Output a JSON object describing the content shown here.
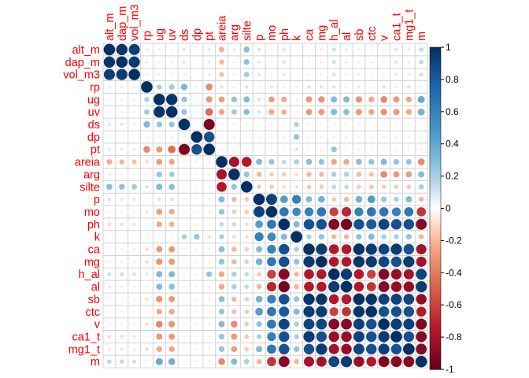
{
  "chart_data": {
    "type": "heatmap",
    "variables": [
      "alt_m",
      "dap_m",
      "vol_m3",
      "rp",
      "ug",
      "uv",
      "ds",
      "dp",
      "pt",
      "areia",
      "arg",
      "silte",
      "p",
      "mo",
      "ph",
      "k",
      "ca",
      "mg",
      "h_al",
      "al",
      "sb",
      "ctc",
      "v",
      "ca1_t",
      "mg1_t",
      "m"
    ],
    "matrix": [
      [
        1,
        0.97,
        0.93,
        0.06,
        0.05,
        0.04,
        0.08,
        -0.02,
        0.07,
        -0.23,
        0.06,
        0.28,
        0.1,
        -0.05,
        -0.1,
        0.02,
        -0.04,
        -0.06,
        0.12,
        0.06,
        -0.05,
        -0.05,
        -0.05,
        -0.1,
        -0.07,
        0.15
      ],
      [
        0.97,
        1,
        0.95,
        0.06,
        0.05,
        0.05,
        0.08,
        -0.02,
        0.07,
        -0.2,
        0.05,
        0.26,
        0.08,
        -0.05,
        -0.1,
        0.02,
        -0.05,
        -0.06,
        0.12,
        0.06,
        -0.05,
        -0.05,
        -0.05,
        -0.1,
        -0.07,
        0.15
      ],
      [
        0.93,
        0.95,
        1,
        0.05,
        0.05,
        0.05,
        0.06,
        -0.02,
        0.06,
        -0.18,
        0.05,
        0.22,
        0.08,
        -0.05,
        -0.08,
        0.02,
        -0.05,
        -0.05,
        0.1,
        0.05,
        -0.05,
        -0.05,
        -0.05,
        -0.08,
        -0.06,
        0.12
      ],
      [
        0.06,
        0.06,
        0.05,
        1,
        0.2,
        0.22,
        0.32,
        0.05,
        -0.35,
        -0.1,
        0.05,
        0.1,
        -0.05,
        -0.08,
        0.05,
        -0.05,
        -0.1,
        -0.1,
        0.08,
        0.05,
        -0.08,
        -0.05,
        -0.1,
        -0.05,
        -0.1,
        0.05
      ],
      [
        0.05,
        0.05,
        0.05,
        0.2,
        1,
        0.97,
        0.25,
        0.05,
        -0.3,
        -0.28,
        0.25,
        0.3,
        0.1,
        -0.28,
        -0.25,
        0.05,
        -0.3,
        -0.32,
        0.3,
        0.3,
        -0.32,
        -0.25,
        -0.35,
        -0.3,
        -0.25,
        0.38
      ],
      [
        0.04,
        0.05,
        0.05,
        0.22,
        0.97,
        1,
        0.25,
        0.05,
        -0.45,
        -0.25,
        0.22,
        0.28,
        0.1,
        -0.25,
        -0.22,
        0.05,
        -0.3,
        -0.3,
        0.3,
        0.28,
        -0.3,
        -0.25,
        -0.32,
        -0.3,
        -0.25,
        0.35
      ],
      [
        0.08,
        0.08,
        0.06,
        0.32,
        0.25,
        0.25,
        1,
        0.05,
        -0.93,
        -0.05,
        0.05,
        0.05,
        0.05,
        -0.05,
        -0.05,
        0.2,
        -0.05,
        -0.05,
        0.05,
        0.05,
        -0.05,
        -0.05,
        -0.05,
        -0.05,
        -0.05,
        0.05
      ],
      [
        -0.02,
        -0.02,
        -0.02,
        0.05,
        0.05,
        0.05,
        0.05,
        1,
        0.85,
        0.05,
        -0.05,
        -0.05,
        -0.05,
        -0.05,
        -0.05,
        0.25,
        -0.05,
        -0.05,
        0.05,
        0.05,
        -0.05,
        -0.05,
        -0.05,
        -0.05,
        0.05,
        0.05
      ],
      [
        0.07,
        0.07,
        0.06,
        -0.35,
        -0.3,
        -0.45,
        -0.93,
        0.85,
        1,
        0.05,
        -0.05,
        -0.05,
        -0.05,
        -0.05,
        -0.05,
        -0.1,
        -0.05,
        -0.05,
        0.25,
        0.05,
        -0.05,
        -0.05,
        -0.05,
        -0.05,
        -0.05,
        0.05
      ],
      [
        -0.23,
        -0.2,
        -0.18,
        -0.1,
        -0.28,
        -0.25,
        -0.05,
        0.05,
        0.05,
        1,
        -0.8,
        -0.75,
        0.3,
        0.25,
        0.15,
        0.2,
        0.28,
        0.25,
        -0.25,
        -0.25,
        0.28,
        0.25,
        0.3,
        0.25,
        0.25,
        -0.35
      ],
      [
        0.06,
        0.05,
        0.05,
        0.05,
        0.25,
        0.22,
        0.05,
        -0.05,
        -0.05,
        -0.8,
        1,
        0.25,
        -0.2,
        -0.15,
        -0.15,
        -0.1,
        -0.2,
        -0.2,
        0.2,
        0.2,
        -0.2,
        -0.18,
        -0.35,
        -0.3,
        -0.28,
        0.3
      ],
      [
        0.28,
        0.26,
        0.22,
        0.1,
        0.3,
        0.28,
        0.05,
        -0.05,
        -0.05,
        -0.75,
        0.25,
        1,
        -0.15,
        -0.15,
        -0.1,
        -0.1,
        -0.15,
        -0.15,
        0.15,
        0.15,
        -0.15,
        -0.15,
        -0.15,
        -0.15,
        -0.15,
        0.2
      ],
      [
        0.1,
        0.08,
        0.08,
        -0.05,
        0.1,
        0.1,
        0.05,
        -0.05,
        -0.05,
        0.3,
        -0.2,
        -0.15,
        1,
        0.92,
        0.45,
        0.6,
        0.3,
        0.35,
        -0.15,
        -0.2,
        0.35,
        0.45,
        0.25,
        0.2,
        0.3,
        -0.2
      ],
      [
        -0.05,
        -0.05,
        -0.05,
        -0.08,
        -0.28,
        -0.25,
        -0.05,
        -0.05,
        -0.05,
        0.25,
        -0.15,
        -0.15,
        0.92,
        1,
        0.65,
        0.55,
        0.6,
        0.65,
        -0.6,
        -0.7,
        0.6,
        0.65,
        0.65,
        0.6,
        0.65,
        -0.65
      ],
      [
        -0.1,
        -0.1,
        -0.08,
        0.05,
        -0.25,
        -0.22,
        -0.05,
        -0.05,
        -0.05,
        0.15,
        -0.15,
        -0.1,
        0.45,
        0.65,
        1,
        0.3,
        0.85,
        0.85,
        -0.9,
        -0.95,
        0.85,
        0.8,
        0.9,
        0.85,
        0.85,
        -0.9
      ],
      [
        0.02,
        0.02,
        0.02,
        -0.05,
        0.05,
        0.05,
        0.2,
        0.25,
        -0.1,
        0.2,
        -0.1,
        -0.1,
        0.6,
        0.55,
        0.3,
        1,
        0.2,
        0.25,
        -0.2,
        -0.2,
        0.25,
        0.3,
        0.2,
        0.2,
        0.25,
        -0.2
      ],
      [
        -0.04,
        -0.05,
        -0.05,
        -0.1,
        -0.3,
        -0.3,
        -0.05,
        -0.05,
        -0.05,
        0.28,
        -0.2,
        -0.15,
        0.3,
        0.6,
        0.85,
        0.2,
        1,
        0.95,
        -0.75,
        -0.75,
        0.98,
        0.95,
        0.9,
        0.95,
        0.85,
        -0.8
      ],
      [
        -0.06,
        -0.06,
        -0.05,
        -0.1,
        -0.32,
        -0.3,
        -0.05,
        -0.05,
        -0.05,
        0.25,
        -0.2,
        -0.15,
        0.35,
        0.65,
        0.85,
        0.25,
        0.95,
        1,
        -0.75,
        -0.75,
        0.97,
        0.95,
        0.9,
        0.85,
        0.95,
        -0.8
      ],
      [
        0.12,
        0.12,
        0.1,
        0.08,
        0.3,
        0.3,
        0.05,
        0.05,
        0.25,
        -0.25,
        0.2,
        0.15,
        -0.15,
        -0.6,
        -0.9,
        -0.2,
        -0.75,
        -0.75,
        1,
        0.95,
        -0.75,
        -0.6,
        -0.9,
        -0.85,
        -0.8,
        0.9
      ],
      [
        0.06,
        0.06,
        0.05,
        0.05,
        0.3,
        0.28,
        0.05,
        0.05,
        0.05,
        -0.25,
        0.2,
        0.15,
        -0.2,
        -0.7,
        -0.95,
        -0.2,
        -0.75,
        -0.75,
        0.95,
        1,
        -0.75,
        -0.65,
        -0.9,
        -0.85,
        -0.85,
        0.95
      ],
      [
        -0.05,
        -0.05,
        -0.05,
        -0.08,
        -0.32,
        -0.3,
        -0.05,
        -0.05,
        -0.05,
        0.28,
        -0.2,
        -0.15,
        0.35,
        0.6,
        0.85,
        0.25,
        0.98,
        0.97,
        -0.75,
        -0.75,
        1,
        0.97,
        0.92,
        0.92,
        0.9,
        -0.85
      ],
      [
        -0.05,
        -0.05,
        -0.05,
        -0.05,
        -0.25,
        -0.25,
        -0.05,
        -0.05,
        -0.05,
        0.25,
        -0.18,
        -0.15,
        0.45,
        0.65,
        0.8,
        0.3,
        0.95,
        0.95,
        -0.6,
        -0.65,
        0.97,
        1,
        0.85,
        0.85,
        0.85,
        -0.75
      ],
      [
        -0.05,
        -0.05,
        -0.05,
        -0.1,
        -0.35,
        -0.32,
        -0.05,
        -0.05,
        -0.05,
        0.3,
        -0.35,
        -0.15,
        0.25,
        0.65,
        0.9,
        0.2,
        0.9,
        0.9,
        -0.9,
        -0.9,
        0.92,
        0.85,
        1,
        0.95,
        0.92,
        -0.92
      ],
      [
        -0.1,
        -0.1,
        -0.08,
        -0.05,
        -0.3,
        -0.3,
        -0.05,
        -0.05,
        -0.05,
        0.25,
        -0.3,
        -0.15,
        0.2,
        0.6,
        0.85,
        0.2,
        0.95,
        0.85,
        -0.85,
        -0.85,
        0.92,
        0.85,
        0.95,
        1,
        0.85,
        -0.9
      ],
      [
        -0.07,
        -0.07,
        -0.06,
        -0.1,
        -0.25,
        -0.25,
        -0.05,
        0.05,
        -0.05,
        0.25,
        -0.28,
        -0.15,
        0.3,
        0.65,
        0.85,
        0.25,
        0.85,
        0.95,
        -0.8,
        -0.85,
        0.9,
        0.85,
        0.92,
        0.85,
        1,
        -0.9
      ],
      [
        0.15,
        0.15,
        0.12,
        0.05,
        0.38,
        0.35,
        0.05,
        0.05,
        0.05,
        -0.35,
        0.3,
        0.2,
        -0.2,
        -0.65,
        -0.9,
        -0.2,
        -0.8,
        -0.8,
        0.9,
        0.95,
        -0.85,
        -0.75,
        -0.92,
        -0.9,
        -0.9,
        1
      ]
    ],
    "colorbar": {
      "ticks": [
        "1",
        "0.8",
        "0.6",
        "0.4",
        "0.2",
        "0",
        "-0.2",
        "-0.4",
        "-0.6",
        "-0.8",
        "-1"
      ],
      "range": [
        -1,
        1
      ]
    },
    "colors": {
      "low": "#67001F",
      "mid": "#FFFFFF",
      "high": "#053061",
      "label": "#FF0000",
      "grid": "#D3D3D3"
    },
    "title": "",
    "xlabel": "",
    "ylabel": "",
    "xlabel_position": "top",
    "ylabel_position": "left",
    "legend_position": "right"
  }
}
